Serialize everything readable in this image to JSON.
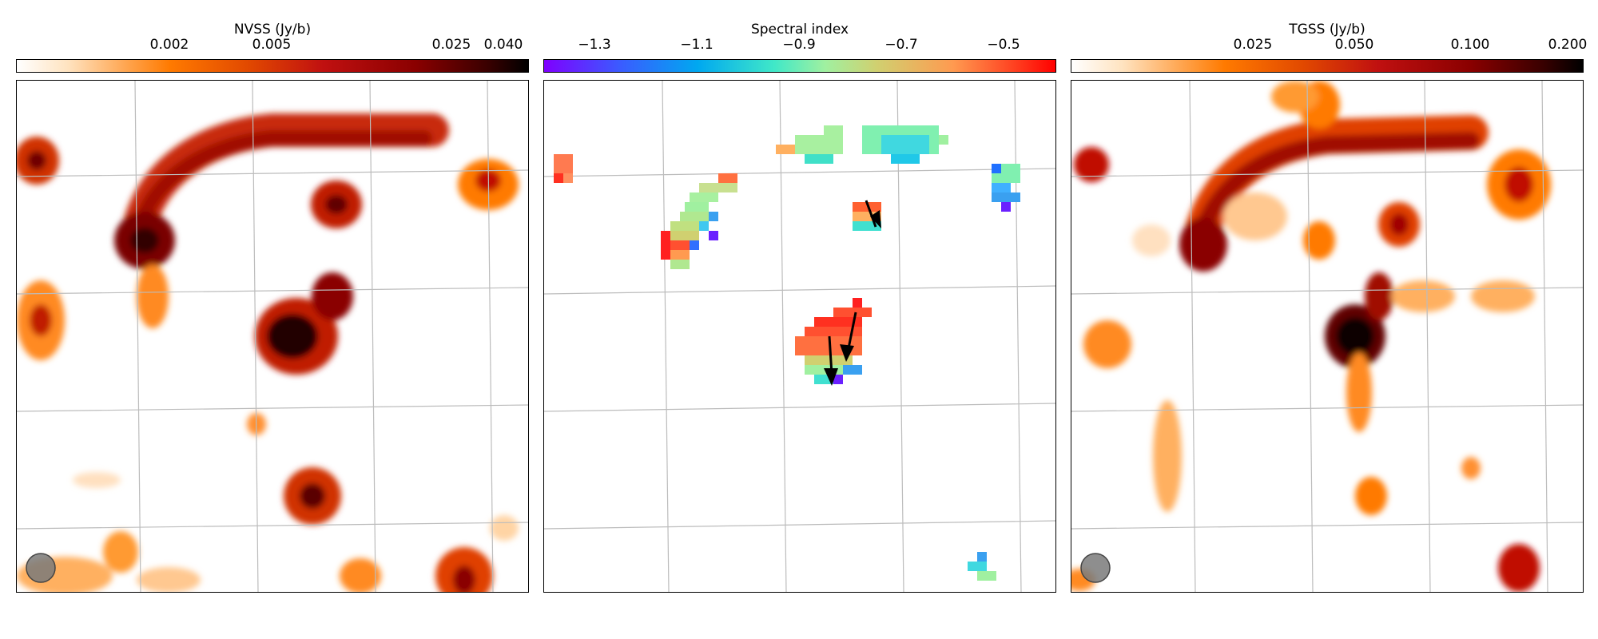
{
  "panels": [
    {
      "id": "nvss",
      "colorbar_label": "NVSS (Jy/b)",
      "colorbar_ticks": [
        "0.002",
        "0.005",
        "0.025",
        "0.040"
      ],
      "colormap": "gist_heat_r",
      "beam_shown": true
    },
    {
      "id": "spectral-index",
      "colorbar_label": "Spectral index",
      "colorbar_ticks": [
        "−1.3",
        "−1.1",
        "−0.9",
        "−0.7",
        "−0.5"
      ],
      "colormap": "rainbow",
      "beam_shown": false
    },
    {
      "id": "tgss",
      "colorbar_label": "TGSS (Jy/b)",
      "colorbar_ticks": [
        "0.025",
        "0.050",
        "0.100",
        "0.200"
      ],
      "colormap": "gist_heat_r",
      "beam_shown": true
    }
  ],
  "colors": {
    "grid": "#bcbcbc",
    "beam": "#7a7a7a",
    "arrow": "#000000"
  }
}
